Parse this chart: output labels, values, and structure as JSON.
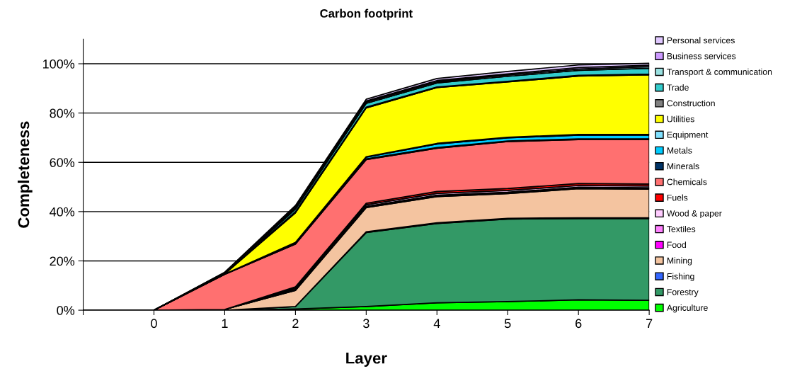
{
  "chart_data": {
    "type": "area",
    "stacked": true,
    "title": "Carbon footprint",
    "xlabel": "Layer",
    "ylabel": "Completeness",
    "categories": [
      null,
      "0",
      "1",
      "2",
      "3",
      "4",
      "5",
      "6",
      "7"
    ],
    "ylim": [
      0,
      110
    ],
    "yticks": [
      {
        "value": 0,
        "label": "0%"
      },
      {
        "value": 20,
        "label": "20%"
      },
      {
        "value": 40,
        "label": "40%"
      },
      {
        "value": 60,
        "label": "60%"
      },
      {
        "value": 80,
        "label": "80%"
      },
      {
        "value": 100,
        "label": "100%"
      }
    ],
    "grid": "y",
    "legend": "right",
    "series": [
      {
        "name": "Agriculture",
        "color": "#00ff00",
        "values": [
          0,
          0,
          0,
          0.5,
          1.5,
          3,
          3.5,
          4.2,
          4
        ]
      },
      {
        "name": "Forestry",
        "color": "#339966",
        "values": [
          0,
          0,
          0,
          1,
          30,
          32.2,
          33.5,
          33,
          33.2
        ]
      },
      {
        "name": "Fishing",
        "color": "#3366ff",
        "values": [
          0,
          0,
          0,
          0,
          0.3,
          0.3,
          0.3,
          0.3,
          0.3
        ]
      },
      {
        "name": "Mining",
        "color": "#f4c4a0",
        "values": [
          0,
          0,
          0.3,
          6.5,
          9.8,
          10.6,
          10,
          11.8,
          11.6
        ]
      },
      {
        "name": "Food",
        "color": "#ff00ff",
        "values": [
          0,
          0,
          0,
          0.2,
          0.3,
          0.3,
          0.3,
          0.3,
          0.3
        ]
      },
      {
        "name": "Textiles",
        "color": "#ff80ff",
        "values": [
          0,
          0,
          0,
          0.3,
          0.3,
          0.3,
          0.3,
          0.3,
          0.3
        ]
      },
      {
        "name": "Wood & paper",
        "color": "#ffccff",
        "values": [
          0,
          0,
          0,
          0.5,
          0.6,
          0.7,
          0.7,
          0.7,
          0.7
        ]
      },
      {
        "name": "Fuels",
        "color": "#ff0000",
        "values": [
          0,
          0,
          0,
          0.5,
          0.6,
          0.8,
          0.8,
          0.8,
          0.8
        ]
      },
      {
        "name": "Chemicals",
        "color": "#ff7070",
        "values": [
          0,
          0,
          14.2,
          17.3,
          17.7,
          17.5,
          19,
          17.8,
          18.1
        ]
      },
      {
        "name": "Minerals",
        "color": "#003366",
        "values": [
          0,
          0,
          0.1,
          0.2,
          0.3,
          0.3,
          0.3,
          0.3,
          0.3
        ]
      },
      {
        "name": "Metals",
        "color": "#00ccff",
        "values": [
          0,
          0,
          0.1,
          0.3,
          0.7,
          1.4,
          1.2,
          1.5,
          1.5
        ]
      },
      {
        "name": "Equipment",
        "color": "#80e0ff",
        "values": [
          0,
          0,
          0,
          0.2,
          0.2,
          0.3,
          0.3,
          0.3,
          0.3
        ]
      },
      {
        "name": "Utilities",
        "color": "#ffff00",
        "values": [
          0,
          0,
          0,
          12,
          19.8,
          22.6,
          22.4,
          23.7,
          24.1
        ]
      },
      {
        "name": "Construction",
        "color": "#808080",
        "values": [
          0,
          0,
          0.2,
          0.5,
          0.3,
          0.3,
          0.3,
          0.3,
          0.3
        ]
      },
      {
        "name": "Trade",
        "color": "#33cccc",
        "values": [
          0,
          0,
          0.2,
          1,
          1.5,
          1.6,
          2,
          2,
          2.4
        ]
      },
      {
        "name": "Transport & communication",
        "color": "#99e0e0",
        "values": [
          0,
          0,
          0.1,
          0.5,
          0.5,
          0.5,
          0.5,
          0.6,
          0.6
        ]
      },
      {
        "name": "Business services",
        "color": "#cc99ff",
        "values": [
          0,
          0,
          0.1,
          0.5,
          0.5,
          0.5,
          0.5,
          0.6,
          0.6
        ]
      },
      {
        "name": "Personal services",
        "color": "#e0c8ff",
        "values": [
          0,
          0,
          0.1,
          0.5,
          0.7,
          0.8,
          1.0,
          1.0,
          0.8
        ]
      }
    ]
  }
}
